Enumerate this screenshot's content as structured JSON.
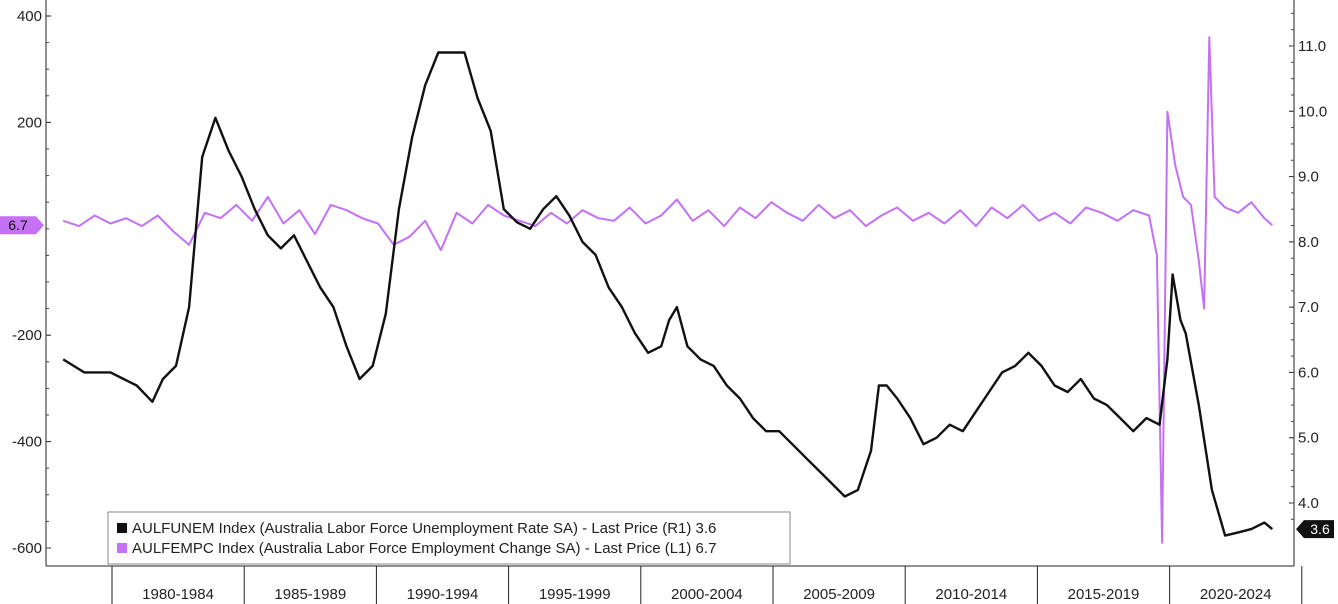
{
  "chart_data": {
    "type": "line",
    "x_categories": [
      "1980-1984",
      "1985-1989",
      "1990-1994",
      "1995-1999",
      "2000-2004",
      "2005-2009",
      "2010-2014",
      "2015-2019",
      "2020-2024"
    ],
    "left_axis": {
      "ticks": [
        400,
        200,
        -200,
        -400,
        -600
      ],
      "tick_labels": [
        "400",
        "200",
        "-200",
        "-400",
        "-600"
      ],
      "range": [
        -600,
        400
      ]
    },
    "right_axis": {
      "ticks": [
        11.0,
        10.0,
        9.0,
        8.0,
        7.0,
        6.0,
        5.0,
        4.0
      ],
      "tick_labels": [
        "11.0",
        "10.0",
        "9.0",
        "8.0",
        "7.0",
        "6.0",
        "5.0",
        "4.0"
      ],
      "range": [
        3.5,
        11.5
      ]
    },
    "grid": false,
    "legend_position": "bottom-left",
    "series": [
      {
        "name": "AULFUNEM Index (Australia Labor Force Unemployment Rate SA) - Last Price (R1) 3.6",
        "axis": "right",
        "color": "#111111",
        "last_value_label": "3.6",
        "points": [
          [
            1978.2,
            6.2
          ],
          [
            1979.0,
            6.0
          ],
          [
            1980.0,
            6.0
          ],
          [
            1980.5,
            5.9
          ],
          [
            1981.0,
            5.8
          ],
          [
            1981.6,
            5.55
          ],
          [
            1982.0,
            5.9
          ],
          [
            1982.5,
            6.1
          ],
          [
            1983.0,
            7.0
          ],
          [
            1983.5,
            9.3
          ],
          [
            1984.0,
            9.9
          ],
          [
            1984.5,
            9.4
          ],
          [
            1985.0,
            9.0
          ],
          [
            1985.5,
            8.5
          ],
          [
            1986.0,
            8.1
          ],
          [
            1986.5,
            7.9
          ],
          [
            1987.0,
            8.1
          ],
          [
            1987.5,
            7.7
          ],
          [
            1988.0,
            7.3
          ],
          [
            1988.5,
            7.0
          ],
          [
            1989.0,
            6.4
          ],
          [
            1989.5,
            5.9
          ],
          [
            1990.0,
            6.1
          ],
          [
            1990.5,
            6.9
          ],
          [
            1991.0,
            8.5
          ],
          [
            1991.5,
            9.6
          ],
          [
            1992.0,
            10.4
          ],
          [
            1992.5,
            10.9
          ],
          [
            1993.0,
            10.9
          ],
          [
            1993.5,
            10.9
          ],
          [
            1994.0,
            10.2
          ],
          [
            1994.5,
            9.7
          ],
          [
            1995.0,
            8.5
          ],
          [
            1995.5,
            8.3
          ],
          [
            1996.0,
            8.2
          ],
          [
            1996.5,
            8.5
          ],
          [
            1997.0,
            8.7
          ],
          [
            1997.5,
            8.4
          ],
          [
            1998.0,
            8.0
          ],
          [
            1998.5,
            7.8
          ],
          [
            1999.0,
            7.3
          ],
          [
            1999.5,
            7.0
          ],
          [
            2000.0,
            6.6
          ],
          [
            2000.5,
            6.3
          ],
          [
            2001.0,
            6.4
          ],
          [
            2001.3,
            6.8
          ],
          [
            2001.6,
            7.0
          ],
          [
            2002.0,
            6.4
          ],
          [
            2002.5,
            6.2
          ],
          [
            2003.0,
            6.1
          ],
          [
            2003.5,
            5.8
          ],
          [
            2004.0,
            5.6
          ],
          [
            2004.5,
            5.3
          ],
          [
            2005.0,
            5.1
          ],
          [
            2005.5,
            5.1
          ],
          [
            2006.0,
            4.9
          ],
          [
            2006.5,
            4.7
          ],
          [
            2007.0,
            4.5
          ],
          [
            2007.5,
            4.3
          ],
          [
            2008.0,
            4.1
          ],
          [
            2008.5,
            4.2
          ],
          [
            2009.0,
            4.8
          ],
          [
            2009.3,
            5.8
          ],
          [
            2009.6,
            5.8
          ],
          [
            2010.0,
            5.6
          ],
          [
            2010.5,
            5.3
          ],
          [
            2011.0,
            4.9
          ],
          [
            2011.5,
            5.0
          ],
          [
            2012.0,
            5.2
          ],
          [
            2012.5,
            5.1
          ],
          [
            2013.0,
            5.4
          ],
          [
            2013.5,
            5.7
          ],
          [
            2014.0,
            6.0
          ],
          [
            2014.5,
            6.1
          ],
          [
            2015.0,
            6.3
          ],
          [
            2015.5,
            6.1
          ],
          [
            2016.0,
            5.8
          ],
          [
            2016.5,
            5.7
          ],
          [
            2017.0,
            5.9
          ],
          [
            2017.5,
            5.6
          ],
          [
            2018.0,
            5.5
          ],
          [
            2018.5,
            5.3
          ],
          [
            2019.0,
            5.1
          ],
          [
            2019.5,
            5.3
          ],
          [
            2020.0,
            5.2
          ],
          [
            2020.3,
            6.2
          ],
          [
            2020.5,
            7.5
          ],
          [
            2020.8,
            6.8
          ],
          [
            2021.0,
            6.6
          ],
          [
            2021.5,
            5.5
          ],
          [
            2022.0,
            4.2
          ],
          [
            2022.5,
            3.5
          ],
          [
            2023.0,
            3.55
          ],
          [
            2023.5,
            3.6
          ],
          [
            2024.0,
            3.7
          ],
          [
            2024.3,
            3.6
          ]
        ]
      },
      {
        "name": "AULFEMPC Index (Australia Labor Force Employment Change SA) - Last Price (L1) 6.7",
        "axis": "left",
        "color": "#c471f5",
        "last_value_label": "6.7",
        "points": [
          [
            1978.2,
            15
          ],
          [
            1978.8,
            5
          ],
          [
            1979.4,
            25
          ],
          [
            1980.0,
            10
          ],
          [
            1980.6,
            20
          ],
          [
            1981.2,
            5
          ],
          [
            1981.8,
            25
          ],
          [
            1982.4,
            -5
          ],
          [
            1983.0,
            -30
          ],
          [
            1983.6,
            30
          ],
          [
            1984.2,
            20
          ],
          [
            1984.8,
            45
          ],
          [
            1985.4,
            15
          ],
          [
            1986.0,
            60
          ],
          [
            1986.6,
            10
          ],
          [
            1987.2,
            35
          ],
          [
            1987.8,
            -10
          ],
          [
            1988.4,
            45
          ],
          [
            1989.0,
            35
          ],
          [
            1989.6,
            20
          ],
          [
            1990.2,
            10
          ],
          [
            1990.8,
            -30
          ],
          [
            1991.4,
            -15
          ],
          [
            1992.0,
            15
          ],
          [
            1992.6,
            -40
          ],
          [
            1993.2,
            30
          ],
          [
            1993.8,
            10
          ],
          [
            1994.4,
            45
          ],
          [
            1995.0,
            25
          ],
          [
            1995.6,
            15
          ],
          [
            1996.2,
            5
          ],
          [
            1996.8,
            30
          ],
          [
            1997.4,
            10
          ],
          [
            1998.0,
            35
          ],
          [
            1998.6,
            20
          ],
          [
            1999.2,
            15
          ],
          [
            1999.8,
            40
          ],
          [
            2000.4,
            10
          ],
          [
            2001.0,
            25
          ],
          [
            2001.6,
            55
          ],
          [
            2002.2,
            15
          ],
          [
            2002.8,
            35
          ],
          [
            2003.4,
            5
          ],
          [
            2004.0,
            40
          ],
          [
            2004.6,
            20
          ],
          [
            2005.2,
            50
          ],
          [
            2005.8,
            30
          ],
          [
            2006.4,
            15
          ],
          [
            2007.0,
            45
          ],
          [
            2007.6,
            20
          ],
          [
            2008.2,
            35
          ],
          [
            2008.8,
            5
          ],
          [
            2009.4,
            25
          ],
          [
            2010.0,
            40
          ],
          [
            2010.6,
            15
          ],
          [
            2011.2,
            30
          ],
          [
            2011.8,
            10
          ],
          [
            2012.4,
            35
          ],
          [
            2013.0,
            5
          ],
          [
            2013.6,
            40
          ],
          [
            2014.2,
            20
          ],
          [
            2014.8,
            45
          ],
          [
            2015.4,
            15
          ],
          [
            2016.0,
            30
          ],
          [
            2016.6,
            10
          ],
          [
            2017.2,
            40
          ],
          [
            2017.8,
            30
          ],
          [
            2018.4,
            15
          ],
          [
            2019.0,
            35
          ],
          [
            2019.6,
            25
          ],
          [
            2019.9,
            -50
          ],
          [
            2020.1,
            -590
          ],
          [
            2020.3,
            220
          ],
          [
            2020.6,
            120
          ],
          [
            2020.9,
            60
          ],
          [
            2021.2,
            45
          ],
          [
            2021.5,
            -60
          ],
          [
            2021.7,
            -150
          ],
          [
            2021.9,
            360
          ],
          [
            2022.1,
            60
          ],
          [
            2022.5,
            40
          ],
          [
            2023.0,
            30
          ],
          [
            2023.5,
            50
          ],
          [
            2024.0,
            20
          ],
          [
            2024.3,
            6.7
          ]
        ]
      }
    ]
  },
  "legend": {
    "items": [
      {
        "label": "AULFUNEM Index (Australia Labor Force Unemployment Rate SA) - Last Price (R1) 3.6",
        "color": "#111111"
      },
      {
        "label": "AULFEMPC Index (Australia Labor Force Employment Change SA) - Last Price (L1) 6.7",
        "color": "#c471f5"
      }
    ]
  }
}
